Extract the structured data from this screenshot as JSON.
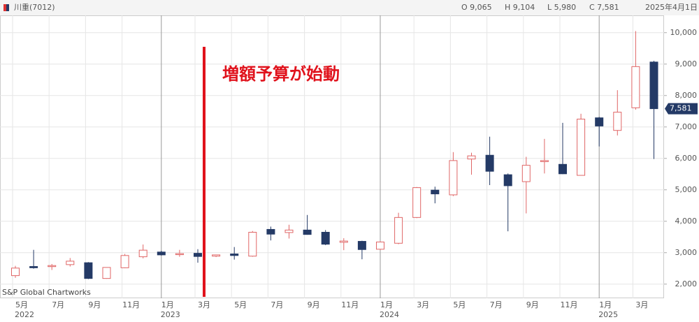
{
  "header": {
    "symbol": "川重(7012)",
    "open": "O 9,065",
    "high": "H 9,104",
    "low": "L 5,980",
    "close": "C 7,581",
    "date": "2025年4月1日"
  },
  "chart_data": {
    "type": "candlestick",
    "annotation": "増額予算が始動",
    "credit": "S&P Global Chartworks",
    "categories": [
      "5月",
      null,
      "7月",
      null,
      "9月",
      null,
      "11月",
      null,
      "1月",
      null,
      "3月",
      null,
      "5月",
      null,
      "7月",
      null,
      "9月",
      null,
      "11月",
      null,
      "1月",
      null,
      "3月",
      null,
      "5月",
      null,
      "7月",
      null,
      "9月",
      null,
      "11月",
      null,
      "1月",
      null,
      "3月",
      null
    ],
    "years": [
      "2022",
      null,
      null,
      null,
      null,
      null,
      null,
      null,
      "2023",
      null,
      null,
      null,
      null,
      null,
      null,
      null,
      null,
      null,
      null,
      null,
      "2024",
      null,
      null,
      null,
      null,
      null,
      null,
      null,
      null,
      null,
      null,
      null,
      "2025",
      null,
      null,
      null
    ],
    "series": [
      {
        "up_color": "#e06666",
        "down_color": "#243a66",
        "open": [
          2270,
          2560,
          2560,
          2620,
          2680,
          2180,
          2520,
          2870,
          3020,
          2940,
          2980,
          2890,
          2960,
          2890,
          3740,
          3640,
          3720,
          3650,
          3330,
          3360,
          3110,
          3300,
          4120,
          4990,
          4840,
          5980,
          6100,
          5480,
          5260,
          5900,
          5810,
          5460,
          7290,
          6890,
          7610,
          9065
        ],
        "high": [
          2580,
          3090,
          2640,
          2830,
          2700,
          2540,
          2960,
          3260,
          3060,
          3090,
          3110,
          2940,
          3180,
          3690,
          3830,
          3890,
          4200,
          3720,
          3460,
          3380,
          3360,
          4270,
          5090,
          5100,
          6200,
          6180,
          6690,
          5520,
          6050,
          6620,
          7130,
          7420,
          7320,
          8170,
          10050,
          9104
        ],
        "low": [
          2200,
          2490,
          2450,
          2560,
          2160,
          2170,
          2510,
          2820,
          2910,
          2870,
          2680,
          2860,
          2780,
          2870,
          3390,
          3450,
          3570,
          3240,
          3080,
          2790,
          3080,
          3270,
          4100,
          4570,
          4800,
          5480,
          5150,
          3680,
          4250,
          5520,
          5500,
          5450,
          6380,
          6730,
          7550,
          5980
        ],
        "close": [
          2510,
          2520,
          2590,
          2730,
          2180,
          2530,
          2910,
          3080,
          2930,
          2970,
          2880,
          2930,
          2910,
          3650,
          3590,
          3720,
          3580,
          3270,
          3370,
          3100,
          3340,
          4120,
          5070,
          4870,
          5930,
          6080,
          5590,
          5130,
          5780,
          5930,
          5510,
          7250,
          7030,
          7470,
          8920,
          7581
        ]
      }
    ],
    "last_price": {
      "value": 7581,
      "label": "7,581"
    },
    "ylim": [
      1550,
      10550
    ],
    "yticks": [
      {
        "value": 2000,
        "label": "2,000"
      },
      {
        "value": 3000,
        "label": "3,000"
      },
      {
        "value": 4000,
        "label": "4,000"
      },
      {
        "value": 5000,
        "label": "5,000"
      },
      {
        "value": 6000,
        "label": "6,000"
      },
      {
        "value": 7000,
        "label": "7,000"
      },
      {
        "value": 8000,
        "label": "8,000"
      },
      {
        "value": 9000,
        "label": "9,000"
      },
      {
        "value": 10000,
        "label": "10,000"
      }
    ],
    "grid": true
  }
}
